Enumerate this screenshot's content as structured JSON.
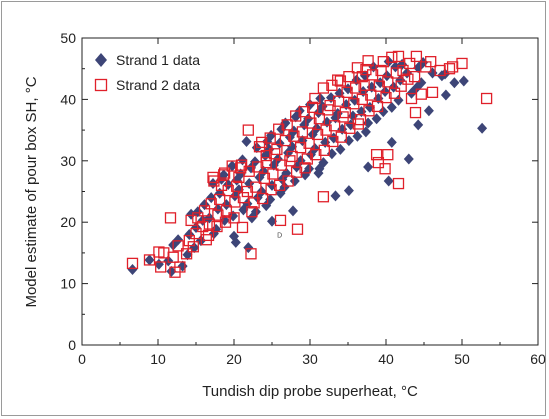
{
  "chart_data": {
    "type": "scatter",
    "xlabel": "Tundish dip probe superheat, °C",
    "ylabel": "Model estimate of pour box SH, °C",
    "xlim": [
      0,
      60
    ],
    "ylim": [
      0,
      50
    ],
    "x_ticks": [
      0,
      10,
      20,
      30,
      40,
      50,
      60
    ],
    "y_ticks": [
      0,
      10,
      20,
      30,
      40,
      50
    ],
    "grid": false,
    "legend": "top-left",
    "stray_text": "D",
    "stray_text_position": [
      26,
      17.5
    ],
    "series": [
      {
        "name": "Strand 1 data",
        "marker": "diamond",
        "color": "#3d4577",
        "x": [
          7,
          9,
          10,
          11,
          12,
          12,
          13,
          13,
          14,
          14,
          14,
          15,
          15,
          15,
          16,
          16,
          16,
          17,
          17,
          17,
          17,
          18,
          18,
          18,
          18,
          19,
          19,
          19,
          19,
          20,
          20,
          20,
          20,
          20,
          21,
          21,
          21,
          21,
          22,
          22,
          22,
          22,
          22,
          23,
          23,
          23,
          23,
          23,
          24,
          24,
          24,
          24,
          24,
          25,
          25,
          25,
          25,
          25,
          26,
          26,
          26,
          26,
          26,
          27,
          27,
          27,
          27,
          27,
          28,
          28,
          28,
          28,
          28,
          29,
          29,
          29,
          29,
          29,
          30,
          30,
          30,
          30,
          30,
          31,
          31,
          31,
          31,
          31,
          32,
          32,
          32,
          32,
          33,
          33,
          33,
          33,
          34,
          34,
          34,
          34,
          35,
          35,
          35,
          35,
          36,
          36,
          36,
          36,
          37,
          37,
          37,
          37,
          38,
          38,
          38,
          38,
          39,
          39,
          39,
          40,
          40,
          40,
          40,
          41,
          41,
          41,
          42,
          42,
          42,
          43,
          43,
          44,
          44,
          45,
          45,
          46,
          47,
          48,
          49,
          50,
          53,
          22,
          35,
          40,
          41,
          43,
          44,
          46,
          48,
          31,
          33,
          28,
          25,
          20,
          38
        ],
        "y": [
          12,
          14,
          13,
          14,
          12,
          16,
          13,
          17,
          15,
          18,
          21,
          16,
          19,
          22,
          17,
          20,
          23,
          18,
          21,
          24,
          26,
          19,
          22,
          25,
          27,
          20,
          23,
          26,
          28,
          21,
          24,
          27,
          29,
          18,
          22,
          25,
          28,
          30,
          21,
          23,
          26,
          29,
          33,
          22,
          24,
          27,
          30,
          32,
          23,
          25,
          28,
          31,
          33,
          24,
          26,
          29,
          32,
          34,
          25,
          27,
          30,
          33,
          35,
          26,
          28,
          31,
          34,
          36,
          27,
          29,
          32,
          35,
          37,
          28,
          30,
          33,
          36,
          38,
          29,
          31,
          34,
          37,
          39,
          29,
          32,
          35,
          38,
          40,
          30,
          33,
          36,
          39,
          31,
          34,
          37,
          40,
          32,
          35,
          38,
          41,
          33,
          36,
          39,
          42,
          34,
          37,
          40,
          43,
          35,
          38,
          41,
          44,
          36,
          39,
          42,
          45,
          37,
          40,
          43,
          38,
          41,
          44,
          46,
          39,
          42,
          45,
          40,
          43,
          46,
          41,
          44,
          42,
          45,
          43,
          46,
          44,
          44,
          44,
          43,
          43,
          35,
          16,
          25,
          27,
          33,
          30,
          36,
          38,
          41,
          28,
          24,
          22,
          20,
          17,
          29
        ]
      },
      {
        "name": "Strand 2 data",
        "marker": "square",
        "color": "#e0202a",
        "x": [
          7,
          9,
          10,
          10,
          11,
          12,
          12,
          13,
          13,
          14,
          14,
          14,
          15,
          15,
          15,
          16,
          16,
          16,
          17,
          17,
          17,
          17,
          18,
          18,
          18,
          18,
          19,
          19,
          19,
          19,
          20,
          20,
          20,
          20,
          21,
          21,
          21,
          21,
          22,
          22,
          22,
          22,
          23,
          23,
          23,
          23,
          24,
          24,
          24,
          24,
          25,
          25,
          25,
          25,
          26,
          26,
          26,
          26,
          27,
          27,
          27,
          27,
          28,
          28,
          28,
          28,
          29,
          29,
          29,
          29,
          30,
          30,
          30,
          30,
          31,
          31,
          31,
          31,
          32,
          32,
          32,
          32,
          33,
          33,
          33,
          33,
          34,
          34,
          34,
          34,
          35,
          35,
          35,
          35,
          36,
          36,
          36,
          36,
          37,
          37,
          37,
          37,
          38,
          38,
          38,
          38,
          39,
          39,
          39,
          39,
          40,
          40,
          40,
          40,
          41,
          41,
          41,
          42,
          42,
          42,
          43,
          43,
          43,
          44,
          44,
          45,
          45,
          46,
          47,
          48,
          49,
          50,
          53,
          12,
          22,
          26,
          28,
          32,
          39,
          40,
          42,
          44,
          46,
          17,
          19,
          21,
          24,
          34,
          37
        ],
        "y": [
          13,
          14,
          15,
          13,
          15,
          14,
          12,
          16,
          13,
          17,
          20,
          15,
          18,
          21,
          16,
          19,
          22,
          17,
          20,
          23,
          27,
          18,
          21,
          24,
          26,
          19,
          22,
          25,
          28,
          20,
          23,
          26,
          29,
          21,
          24,
          27,
          29,
          19,
          22,
          25,
          28,
          15,
          23,
          26,
          29,
          32,
          24,
          27,
          30,
          33,
          25,
          28,
          31,
          34,
          26,
          29,
          32,
          35,
          27,
          30,
          33,
          36,
          28,
          31,
          34,
          37,
          29,
          32,
          35,
          38,
          30,
          33,
          36,
          39,
          31,
          34,
          37,
          40,
          32,
          35,
          38,
          42,
          33,
          36,
          39,
          42,
          34,
          37,
          40,
          43,
          35,
          38,
          41,
          44,
          36,
          39,
          42,
          45,
          37,
          40,
          42,
          45,
          38,
          41,
          44,
          46,
          39,
          42,
          45,
          31,
          40,
          43,
          46,
          29,
          41,
          44,
          47,
          42,
          45,
          47,
          43,
          46,
          40,
          44,
          47,
          45,
          41,
          46,
          45,
          45,
          45,
          46,
          40,
          21,
          35,
          20,
          19,
          24,
          30,
          31,
          26,
          38,
          41,
          27,
          28,
          29,
          31,
          43,
          44
        ]
      }
    ]
  }
}
